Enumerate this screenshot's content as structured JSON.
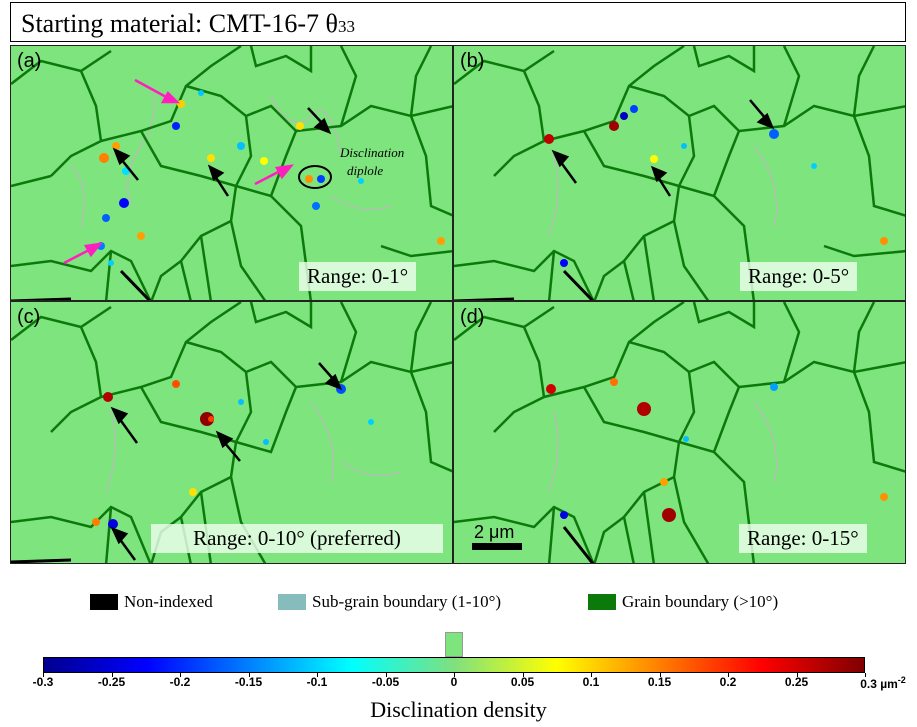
{
  "figure": {
    "title_main": "Starting material: CMT-16-7  θ",
    "title_sub": "33"
  },
  "panels": [
    {
      "id": "a",
      "label": "(a)",
      "range_label": "Range: 0-1°"
    },
    {
      "id": "b",
      "label": "(b)",
      "range_label": "Range: 0-5°"
    },
    {
      "id": "c",
      "label": "(c)",
      "range_label": "Range: 0-10° (preferred)"
    },
    {
      "id": "d",
      "label": "(d)",
      "range_label": "Range: 0-15°"
    }
  ],
  "annotations": {
    "diplole_line1": "Disclination",
    "diplole_line2": "diplole",
    "scale_bar": "2 μm"
  },
  "legend": {
    "non_indexed": "Non-indexed",
    "sub_grain": "Sub-grain boundary (1-10°)",
    "grain": "Grain boundary (>10°)",
    "colors": {
      "non_indexed": "#000000",
      "sub_grain": "#86bcbc",
      "grain": "#0b7a0b",
      "background": "#7ee47e"
    }
  },
  "colorbar": {
    "ticks": [
      "-0.3",
      "-0.25",
      "-0.2",
      "-0.15",
      "-0.1",
      "-0.05",
      "0",
      "0.05",
      "0.1",
      "0.15",
      "0.2",
      "0.25",
      "0.3"
    ],
    "unit": "µm",
    "unit_exp": "-2",
    "label": "Disclination density",
    "min": -0.3,
    "max": 0.3
  }
}
